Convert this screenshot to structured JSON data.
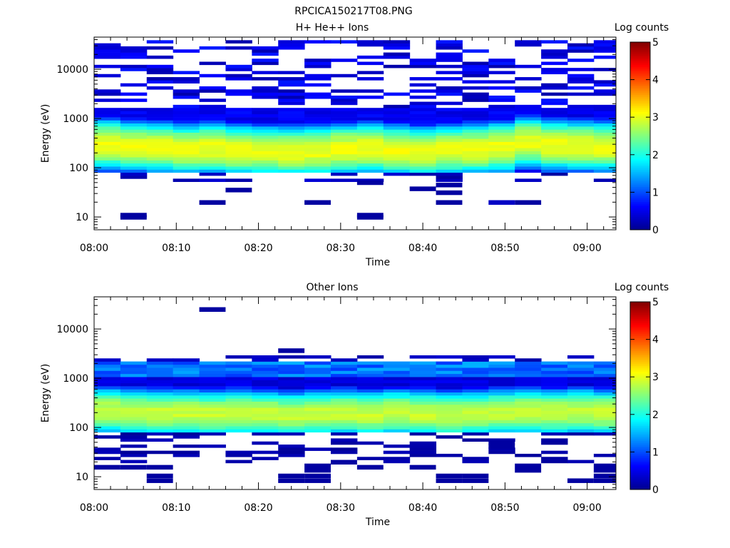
{
  "figure_title": "RPCICA150217T08.PNG",
  "colors": {
    "colormap": [
      "#00008f",
      "#0000ff",
      "#0080ff",
      "#00ffff",
      "#80ff80",
      "#ffff00",
      "#ff8000",
      "#ff0000",
      "#800000"
    ]
  },
  "chart_data": [
    {
      "type": "heatmap",
      "title": "H+ He++ Ions",
      "xlabel": "Time",
      "ylabel": "Energy (eV)",
      "colorbar_label": "Log counts",
      "x_ticks": [
        "08:00",
        "08:10",
        "08:20",
        "08:30",
        "08:40",
        "08:50",
        "09:00"
      ],
      "y_ticks": [
        "10",
        "100",
        "1000",
        "10000"
      ],
      "colorbar_ticks": [
        "0",
        "1",
        "2",
        "3",
        "4",
        "5"
      ],
      "y_scale": "log",
      "ylim": [
        5.5,
        45000
      ],
      "xlim_minutes": [
        0,
        63.5
      ],
      "clim": [
        0,
        5
      ],
      "time_bins_minutes": [
        0,
        3.2,
        6.4,
        9.6,
        12.8,
        16,
        19.2,
        22.4,
        25.6,
        28.8,
        32,
        35.2,
        38.4,
        41.6,
        44.8,
        48,
        51.2,
        54.4,
        57.6,
        60.8
      ],
      "main_band_peak_eV": [
        300,
        270,
        260,
        240,
        250,
        230,
        220,
        210,
        220,
        240,
        250,
        230,
        210,
        230,
        240,
        260,
        330,
        290,
        280,
        270
      ],
      "sparse_cells": [
        {
          "t_bin": 1,
          "energy_eV": 9.5,
          "log_counts": 0.1
        },
        {
          "t_bin": 1,
          "energy_eV": 10.5,
          "log_counts": 0.1
        },
        {
          "t_bin": 10,
          "energy_eV": 9.5,
          "log_counts": 0.1
        },
        {
          "t_bin": 10,
          "energy_eV": 10.5,
          "log_counts": 0.1
        },
        {
          "t_bin": 4,
          "energy_eV": 19,
          "log_counts": 0.1
        },
        {
          "t_bin": 8,
          "energy_eV": 19,
          "log_counts": 0.1
        },
        {
          "t_bin": 13,
          "energy_eV": 19,
          "log_counts": 0.1
        },
        {
          "t_bin": 15,
          "energy_eV": 19,
          "log_counts": 0.3
        },
        {
          "t_bin": 16,
          "energy_eV": 19,
          "log_counts": 0.1
        },
        {
          "t_bin": 5,
          "energy_eV": 34,
          "log_counts": 0.1
        },
        {
          "t_bin": 13,
          "energy_eV": 30,
          "log_counts": 0.1
        },
        {
          "t_bin": 12,
          "energy_eV": 36,
          "log_counts": 0.1
        },
        {
          "t_bin": 13,
          "energy_eV": 43,
          "log_counts": 0.1
        },
        {
          "t_bin": 10,
          "energy_eV": 48,
          "log_counts": 0.1
        }
      ]
    },
    {
      "type": "heatmap",
      "title": "Other Ions",
      "xlabel": "Time",
      "ylabel": "Energy (eV)",
      "colorbar_label": "Log counts",
      "x_ticks": [
        "08:00",
        "08:10",
        "08:20",
        "08:30",
        "08:40",
        "08:50",
        "09:00"
      ],
      "y_ticks": [
        "10",
        "100",
        "1000",
        "10000"
      ],
      "colorbar_ticks": [
        "0",
        "1",
        "2",
        "3",
        "4",
        "5"
      ],
      "y_scale": "log",
      "ylim": [
        5.5,
        45000
      ],
      "xlim_minutes": [
        0,
        63.5
      ],
      "clim": [
        0,
        5
      ],
      "time_bins_minutes": [
        0,
        3.2,
        6.4,
        9.6,
        12.8,
        16,
        19.2,
        22.4,
        25.6,
        28.8,
        32,
        35.2,
        38.4,
        41.6,
        44.8,
        48,
        51.2,
        54.4,
        57.6,
        60.8
      ],
      "main_band_peak_eV": [
        220,
        210,
        200,
        200,
        190,
        200,
        190,
        180,
        190,
        200,
        190,
        200,
        190,
        180,
        190,
        200,
        210,
        200,
        210,
        200
      ],
      "sparse_cells": [
        {
          "t_bin": 0,
          "energy_eV": 15,
          "log_counts": 0.1
        },
        {
          "t_bin": 1,
          "energy_eV": 15,
          "log_counts": 0.1
        },
        {
          "t_bin": 2,
          "energy_eV": 15,
          "log_counts": 0.1
        },
        {
          "t_bin": 2,
          "energy_eV": 8,
          "log_counts": 0.1
        },
        {
          "t_bin": 2,
          "energy_eV": 10,
          "log_counts": 0.1
        },
        {
          "t_bin": 7,
          "energy_eV": 8,
          "log_counts": 0.1
        },
        {
          "t_bin": 7,
          "energy_eV": 10,
          "log_counts": 0.1
        },
        {
          "t_bin": 8,
          "energy_eV": 8,
          "log_counts": 0.1
        },
        {
          "t_bin": 8,
          "energy_eV": 10,
          "log_counts": 0.1
        },
        {
          "t_bin": 8,
          "energy_eV": 13,
          "log_counts": 0.1
        },
        {
          "t_bin": 8,
          "energy_eV": 16,
          "log_counts": 0.1
        },
        {
          "t_bin": 9,
          "energy_eV": 19,
          "log_counts": 0.1
        },
        {
          "t_bin": 10,
          "energy_eV": 15,
          "log_counts": 0.1
        },
        {
          "t_bin": 12,
          "energy_eV": 15,
          "log_counts": 0.1
        },
        {
          "t_bin": 13,
          "energy_eV": 8,
          "log_counts": 0.1
        },
        {
          "t_bin": 13,
          "energy_eV": 10,
          "log_counts": 0.1
        },
        {
          "t_bin": 14,
          "energy_eV": 8,
          "log_counts": 0.1
        },
        {
          "t_bin": 14,
          "energy_eV": 10,
          "log_counts": 0.1
        },
        {
          "t_bin": 16,
          "energy_eV": 13,
          "log_counts": 0.1
        },
        {
          "t_bin": 16,
          "energy_eV": 16,
          "log_counts": 0.1
        },
        {
          "t_bin": 18,
          "energy_eV": 8,
          "log_counts": 0.1
        },
        {
          "t_bin": 19,
          "energy_eV": 8,
          "log_counts": 0.1
        },
        {
          "t_bin": 19,
          "energy_eV": 10,
          "log_counts": 0.1
        },
        {
          "t_bin": 19,
          "energy_eV": 13,
          "log_counts": 0.1
        },
        {
          "t_bin": 19,
          "energy_eV": 16,
          "log_counts": 0.1
        },
        {
          "t_bin": 15,
          "energy_eV": 40,
          "log_counts": 0.1
        },
        {
          "t_bin": 15,
          "energy_eV": 48,
          "log_counts": 0.1
        },
        {
          "t_bin": 4,
          "energy_eV": 24000,
          "log_counts": 0.1
        },
        {
          "t_bin": 7,
          "energy_eV": 3500,
          "log_counts": 0.1
        }
      ]
    }
  ]
}
